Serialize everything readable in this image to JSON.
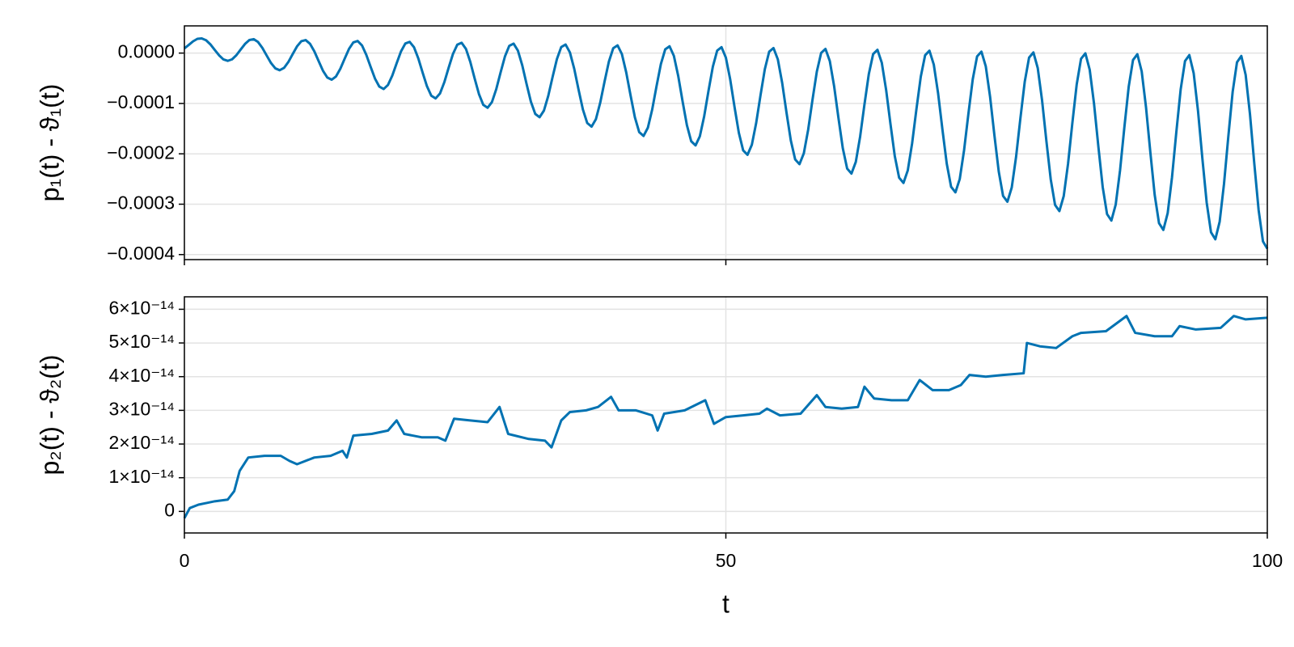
{
  "chart_data": [
    {
      "type": "line",
      "color": "#0072b2",
      "grid": true,
      "xticklabels": false,
      "ylabel": "p₁(t) - ϑ₁(t)",
      "xlim": [
        0,
        100
      ],
      "xticks": [
        0,
        50,
        100
      ],
      "ylim": [
        -0.00041,
        5.4e-05
      ],
      "yticks": [
        {
          "value": 0,
          "label": "0.0000"
        },
        {
          "value": -0.0001,
          "label": "−0.0001"
        },
        {
          "value": -0.0002,
          "label": "−0.0002"
        },
        {
          "value": -0.0003,
          "label": "−0.0003"
        },
        {
          "value": -0.0004,
          "label": "−0.0004"
        }
      ],
      "x": [
        0,
        0.4,
        0.8,
        1.2,
        1.6,
        2,
        2.4,
        2.8,
        3.2,
        3.6,
        4,
        4.4,
        4.8,
        5.2,
        5.6,
        6,
        6.4,
        6.8,
        7.2,
        7.6,
        8,
        8.4,
        8.8,
        9.2,
        9.6,
        10,
        10.4,
        10.8,
        11.2,
        11.6,
        12,
        12.4,
        12.8,
        13.2,
        13.6,
        14,
        14.4,
        14.8,
        15.2,
        15.6,
        16,
        16.4,
        16.8,
        17.2,
        17.6,
        18,
        18.4,
        18.8,
        19.2,
        19.6,
        20,
        20.4,
        20.8,
        21.2,
        21.6,
        22,
        22.4,
        22.8,
        23.2,
        23.6,
        24,
        24.4,
        24.8,
        25.2,
        25.6,
        26,
        26.4,
        26.8,
        27.2,
        27.6,
        28,
        28.4,
        28.8,
        29.2,
        29.6,
        30,
        30.4,
        30.8,
        31.2,
        31.6,
        32,
        32.4,
        32.8,
        33.2,
        33.6,
        34,
        34.4,
        34.8,
        35.2,
        35.6,
        36,
        36.4,
        36.8,
        37.2,
        37.6,
        38,
        38.4,
        38.8,
        39.2,
        39.6,
        40,
        40.4,
        40.8,
        41.2,
        41.6,
        42,
        42.4,
        42.8,
        43.2,
        43.6,
        44,
        44.4,
        44.8,
        45.2,
        45.6,
        46,
        46.4,
        46.8,
        47.2,
        47.6,
        48,
        48.4,
        48.8,
        49.2,
        49.6,
        50,
        50.4,
        50.8,
        51.2,
        51.6,
        52,
        52.4,
        52.8,
        53.2,
        53.6,
        54,
        54.4,
        54.8,
        55.2,
        55.6,
        56,
        56.4,
        56.8,
        57.2,
        57.6,
        58,
        58.4,
        58.8,
        59.2,
        59.6,
        60,
        60.4,
        60.8,
        61.2,
        61.6,
        62,
        62.4,
        62.8,
        63.2,
        63.6,
        64,
        64.4,
        64.8,
        65.2,
        65.6,
        66,
        66.4,
        66.8,
        67.2,
        67.6,
        68,
        68.4,
        68.8,
        69.2,
        69.6,
        70,
        70.4,
        70.8,
        71.2,
        71.6,
        72,
        72.4,
        72.8,
        73.2,
        73.6,
        74,
        74.4,
        74.8,
        75.2,
        75.6,
        76,
        76.4,
        76.8,
        77.2,
        77.6,
        78,
        78.4,
        78.8,
        79.2,
        79.6,
        80,
        80.4,
        80.8,
        81.2,
        81.6,
        82,
        82.4,
        82.8,
        83.2,
        83.6,
        84,
        84.4,
        84.8,
        85.2,
        85.6,
        86,
        86.4,
        86.8,
        87.2,
        87.6,
        88,
        88.4,
        88.8,
        89.2,
        89.6,
        90,
        90.4,
        90.8,
        91.2,
        91.6,
        92,
        92.4,
        92.8,
        93.2,
        93.6,
        94,
        94.4,
        94.8,
        95.2,
        95.6,
        96,
        96.4,
        96.8,
        97.2,
        97.6,
        98,
        98.4,
        98.8,
        99.2,
        99.6,
        100
      ],
      "values": [
        9.3e-06,
        1.62e-05,
        2.33e-05,
        2.83e-05,
        2.92e-05,
        2.55e-05,
        1.73e-05,
        6.4e-06,
        -4.4e-06,
        -1.25e-05,
        -1.54e-05,
        -1.24e-05,
        -4.2e-06,
        7.1e-06,
        1.82e-05,
        2.59e-05,
        2.76e-05,
        2.2e-05,
        1.03e-05,
        -4.9e-06,
        -1.98e-05,
        -3.04e-05,
        -3.4e-05,
        -2.94e-05,
        -1.77e-05,
        -2e-06,
        1.33e-05,
        2.36e-05,
        2.58e-05,
        1.85e-05,
        3.4e-06,
        -1.61e-05,
        -3.52e-05,
        -4.86e-05,
        -5.28e-05,
        -4.64e-05,
        -3.11e-05,
        -1.11e-05,
        8.3e-06,
        2.12e-05,
        2.4e-05,
        1.52e-05,
        -3.6e-06,
        -2.75e-05,
        -5.06e-05,
        -6.66e-05,
        -7.13e-05,
        -6.33e-05,
        -4.46e-05,
        -2.02e-05,
        3.2e-06,
        1.9e-05,
        2.23e-05,
        1.17e-05,
        -1.05e-05,
        -3.88e-05,
        -6.59e-05,
        -8.47e-05,
        -9e-05,
        -8.03e-05,
        -5.8e-05,
        -2.92e-05,
        -1.8e-06,
        1.66e-05,
        2.05e-05,
        8.3e-06,
        -1.74e-05,
        -5.01e-05,
        -8.13e-05,
        -0.0001028,
        -0.0001086,
        -9.72e-05,
        -7.15e-05,
        -3.83e-05,
        -6.8e-06,
        1.43e-05,
        1.88e-05,
        4.8e-06,
        -2.44e-05,
        -6.15e-05,
        -9.67e-05,
        -0.0001208,
        -0.0001273,
        -0.0001142,
        -8.5e-05,
        -4.74e-05,
        -1.18e-05,
        1.2e-05,
        1.7e-05,
        1.3e-06,
        -3.13e-05,
        -7.27e-05,
        -0.0001121,
        -0.0001389,
        -0.000146,
        -0.0001312,
        -9.84e-05,
        -5.65e-05,
        -1.68e-05,
        9.6e-06,
        1.53e-05,
        -2e-06,
        -3.83e-05,
        -8.4e-05,
        -0.0001275,
        -0.000157,
        -0.0001645,
        -0.0001481,
        -0.0001119,
        -6.56e-05,
        -2.18e-05,
        7.4e-06,
        1.35e-05,
        -5.5e-06,
        -4.52e-05,
        -9.54e-05,
        -0.0001428,
        -0.000175,
        -0.0001833,
        -0.0001651,
        -0.0001253,
        -7.46e-05,
        -2.68e-05,
        5e-06,
        1.17e-05,
        -8.9e-06,
        -5.21e-05,
        -0.0001067,
        -0.0001583,
        -0.0001932,
        -0.0002019,
        -0.000182,
        -0.0001388,
        -8.38e-05,
        -3.19e-05,
        2.7e-06,
        1e-05,
        -1.24e-05,
        -5.91e-05,
        -0.000118,
        -0.0001736,
        -0.0002111,
        -0.0002205,
        -0.000199,
        -0.0001523,
        -9.28e-05,
        -3.68e-05,
        3e-07,
        8.3e-06,
        -1.59e-05,
        -6.6e-05,
        -0.0001292,
        -0.000189,
        -0.0002293,
        -0.0002392,
        -0.000216,
        -0.0001657,
        -0.0001019,
        -4.19e-05,
        -2e-06,
        6.5e-06,
        -1.92e-05,
        -7.3e-05,
        -0.0001406,
        -0.0002045,
        -0.0002473,
        -0.0002578,
        -0.0002329,
        -0.0001792,
        -0.0001111,
        -4.69e-05,
        -4.3e-06,
        4.7e-06,
        -2.27e-05,
        -7.99e-05,
        -0.0001519,
        -0.0002198,
        -0.0002654,
        -0.0002765,
        -0.0002499,
        -0.0001926,
        -0.0001201,
        -5.19e-05,
        -6.6e-06,
        2.9e-06,
        -2.61e-05,
        -8.68e-05,
        -0.0001632,
        -0.0002352,
        -0.0002835,
        -0.0002951,
        -0.0002668,
        -0.0002061,
        -0.0001292,
        -5.7e-05,
        -9e-06,
        1.3e-06,
        -2.96e-05,
        -9.38e-05,
        -0.0001746,
        -0.0002506,
        -0.0003015,
        -0.0003137,
        -0.0002838,
        -0.0002196,
        -0.0001383,
        -6.19e-05,
        -1.13e-05,
        -5e-07,
        -3.31e-05,
        -0.0001007,
        -0.0001858,
        -0.000266,
        -0.0003196,
        -0.0003325,
        -0.0003008,
        -0.000233,
        -0.0001474,
        -6.69e-05,
        -1.37e-05,
        -2.3e-06,
        -3.64e-05,
        -0.0001077,
        -0.0001972,
        -0.0002814,
        -0.0003377,
        -0.000351,
        -0.0003177,
        -0.0002465,
        -0.0001565,
        -7.2e-05,
        -1.59e-05,
        -4e-06,
        -3.99e-05,
        -0.0001146,
        -0.0002085,
        -0.0002967,
        -0.0003557,
        -0.0003697,
        -0.0003347,
        -0.0002599,
        -0.0001655,
        -7.7e-05,
        -1.83e-05,
        -5.8e-06,
        -4.33e-05,
        -0.0001215,
        -0.0002198,
        -0.0003121,
        -0.0003739,
        -0.0003883
      ]
    },
    {
      "type": "line",
      "color": "#0072b2",
      "grid": true,
      "xticklabels": true,
      "ylabel": "p₂(t) - ϑ₂(t)",
      "xlabel": "t",
      "xlim": [
        0,
        100
      ],
      "xticks": [
        0,
        50,
        100
      ],
      "ylim": [
        -6.4e-15,
        6.37e-14
      ],
      "yticks": [
        0,
        {
          "value": 1e-14,
          "label": "1×10⁻¹⁴"
        },
        {
          "value": 2e-14,
          "label": "2×10⁻¹⁴"
        },
        {
          "value": 3e-14,
          "label": "3×10⁻¹⁴"
        },
        {
          "value": 4e-14,
          "label": "4×10⁻¹⁴"
        },
        {
          "value": 5e-14,
          "label": "5×10⁻¹⁴"
        },
        {
          "value": 6e-14,
          "label": "6×10⁻¹⁴"
        }
      ],
      "x": [
        0,
        0.5,
        1.3,
        2.8,
        4,
        4.6,
        5.1,
        5.9,
        7.4,
        8.9,
        9.7,
        10.4,
        12,
        13.5,
        14.6,
        15,
        15.6,
        17.3,
        18.8,
        19.6,
        20.3,
        21.9,
        23.4,
        24.1,
        24.9,
        26.4,
        28,
        29.1,
        29.9,
        31.8,
        33.3,
        33.9,
        34.8,
        35.6,
        37.1,
        38.2,
        39.4,
        40.1,
        41.7,
        43.2,
        43.7,
        44.3,
        46.2,
        48.1,
        48.9,
        50,
        51.6,
        53.1,
        53.8,
        55,
        56.9,
        58.4,
        59.2,
        60.7,
        62.2,
        62.8,
        63.7,
        65.3,
        66.8,
        67.9,
        69.1,
        70.6,
        71.7,
        72.5,
        74,
        75.6,
        77.5,
        77.8,
        79,
        80.5,
        82,
        82.8,
        85.1,
        87,
        87.8,
        89.6,
        91.2,
        91.9,
        93.4,
        95.7,
        96.9,
        98,
        100
      ],
      "values": [
        -2e-15,
        1e-15,
        2e-15,
        3e-15,
        3.5e-15,
        6e-15,
        1.2e-14,
        1.6e-14,
        1.65e-14,
        1.65e-14,
        1.5e-14,
        1.4e-14,
        1.6e-14,
        1.65e-14,
        1.8e-14,
        1.6e-14,
        2.25e-14,
        2.3e-14,
        2.4e-14,
        2.7e-14,
        2.3e-14,
        2.2e-14,
        2.2e-14,
        2.1e-14,
        2.75e-14,
        2.7e-14,
        2.65e-14,
        3.1e-14,
        2.3e-14,
        2.15e-14,
        2.1e-14,
        1.9e-14,
        2.7e-14,
        2.95e-14,
        3e-14,
        3.1e-14,
        3.4e-14,
        3e-14,
        3e-14,
        2.85e-14,
        2.4e-14,
        2.9e-14,
        3e-14,
        3.3e-14,
        2.6e-14,
        2.8e-14,
        2.85e-14,
        2.9e-14,
        3.05e-14,
        2.85e-14,
        2.9e-14,
        3.45e-14,
        3.1e-14,
        3.05e-14,
        3.1e-14,
        3.7e-14,
        3.35e-14,
        3.3e-14,
        3.3e-14,
        3.9e-14,
        3.6e-14,
        3.6e-14,
        3.75e-14,
        4.05e-14,
        4e-14,
        4.05e-14,
        4.1e-14,
        5e-14,
        4.9e-14,
        4.85e-14,
        5.2e-14,
        5.3e-14,
        5.35e-14,
        5.8e-14,
        5.3e-14,
        5.2e-14,
        5.2e-14,
        5.5e-14,
        5.4e-14,
        5.45e-14,
        5.8e-14,
        5.7e-14,
        5.75e-14
      ]
    }
  ]
}
